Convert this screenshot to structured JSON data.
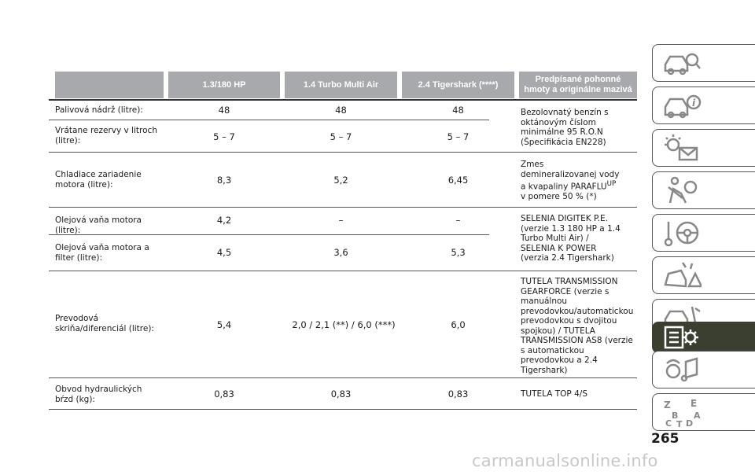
{
  "table": {
    "headers": [
      "",
      "1.3/180 HP",
      "1.4 Turbo Multi Air",
      "2.4 Tigershark (****)",
      "Predpísané pohonné hmoty a originálne mazivá"
    ],
    "rows": [
      {
        "label": "Palivová nádrž (litre):",
        "v1": "48",
        "v2": "48",
        "v3": "48"
      },
      {
        "label": "Vrátane rezervy v litroch (litre):",
        "v1": "5 – 7",
        "v2": "5 – 7",
        "v3": "5 – 7"
      },
      {
        "label": "Chladiace zariadenie motora (litre):",
        "v1": "8,3",
        "v2": "5,2",
        "v3": "6,45"
      },
      {
        "label": "Olejová vaňa motora (litre):",
        "v1": "4,2",
        "v2": "–",
        "v3": "–"
      },
      {
        "label": "Olejová vaňa motora a filter (litre):",
        "v1": "4,5",
        "v2": "3,6",
        "v3": "5,3"
      },
      {
        "label": "Prevodová skriňa/diferenciál (litre):",
        "v1": "5,4",
        "v2": "2,0 / 2,1 (**) / 6,0 (***)",
        "v3": "6,0"
      },
      {
        "label": "Obvod hydraulických bŕzd (kg):",
        "v1": "0,83",
        "v2": "0,83",
        "v3": "0,83"
      }
    ],
    "notes": {
      "fuel": "Bezolovnatý benzín s oktánovým číslom minimálne 95 R.O.N (Špecifikácia EN228)",
      "coolant_a": "Zmes demineralizovanej vody a kvapaliny PARAFLU",
      "coolant_sup": "UP",
      "coolant_b": " v pomere 50 % (*)",
      "oil": "SELENIA DIGITEK P.E. (verzie 1.3 180 HP a 1.4 Turbo Multi Air) / SELENIA K POWER (verzia 2.4 Tigershark)",
      "transmission": "TUTELA TRANSMISSION GEARFORCE (verzie s manuálnou prevodovkou/automatickou prevodovkou s dvojitou spojkou) / TUTELA TRANSMISSION AS8 (verzie s automatickou prevodovkou a 2.4 Tigershark)",
      "brake": "TUTELA TOP 4/S"
    }
  },
  "sidebar": {
    "icons": [
      "car-search-icon",
      "car-info-icon",
      "warning-light-message-icon",
      "airbag-seatbelt-icon",
      "key-steering-wheel-icon",
      "car-crash-warning-icon",
      "car-wrench-icon",
      "technical-data-gear-icon",
      "multimedia-icon",
      "alphabetical-index-icon"
    ],
    "active_index": 7,
    "index_letters": [
      "Z",
      "E",
      "B",
      "A",
      "C",
      "T",
      "D"
    ]
  },
  "page_number": "265",
  "watermark": "carmanualsonline.info"
}
